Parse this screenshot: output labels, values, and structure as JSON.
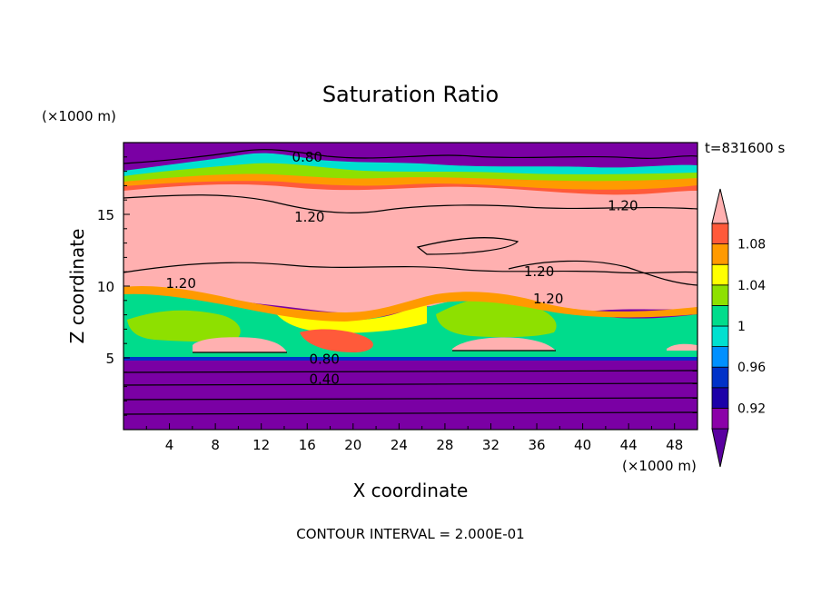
{
  "chart_data": {
    "type": "heatmap",
    "title": "Saturation Ratio",
    "xlabel": "X coordinate",
    "ylabel": "Z coordinate",
    "x_unit": "(×1000 m)",
    "y_unit": "(×1000 m)",
    "time_label": "t=831600 s",
    "footer": "CONTOUR INTERVAL = 2.000E-01",
    "xlim": [
      0,
      50
    ],
    "ylim": [
      0,
      20
    ],
    "x_ticks": [
      4,
      8,
      12,
      16,
      20,
      24,
      28,
      32,
      36,
      40,
      44,
      48
    ],
    "y_ticks": [
      5,
      10,
      15
    ],
    "colorbar": {
      "levels": [
        0.9,
        0.92,
        0.94,
        0.96,
        0.98,
        1.0,
        1.02,
        1.04,
        1.06,
        1.08,
        1.1
      ],
      "labeled_levels": [
        0.92,
        0.96,
        1.0,
        1.04,
        1.08
      ],
      "tick_labels": [
        "0.92",
        "0.96",
        "1",
        "1.04",
        "1.08"
      ],
      "colors": [
        "#5a00a0",
        "#8b00a8",
        "#1c00a8",
        "#0032c8",
        "#0090ff",
        "#00e0d0",
        "#00dc8c",
        "#8ee000",
        "#ffff00",
        "#ff9a00",
        "#ff5a3a",
        "#ffb0b0"
      ],
      "extend": "both"
    },
    "contour_labels": [
      "0.80",
      "1.20",
      "1.20",
      "1.20",
      "1.20",
      "1.20",
      "0.80",
      "0.40"
    ],
    "contour_label_positions": [
      {
        "x": 16,
        "y": 19.0
      },
      {
        "x": 16.2,
        "y": 14.8
      },
      {
        "x": 43.5,
        "y": 15.6
      },
      {
        "x": 36.2,
        "y": 11.0
      },
      {
        "x": 37.0,
        "y": 9.1
      },
      {
        "x": 5.0,
        "y": 10.2
      },
      {
        "x": 17.5,
        "y": 4.9
      },
      {
        "x": 17.5,
        "y": 3.5
      }
    ],
    "regions": {
      "upper_dry_band_z": [
        18.5,
        20
      ],
      "upper_moist_band_z": [
        16,
        18.5
      ],
      "supersaturated_layer_z": [
        10,
        16
      ],
      "mixed_cloud_layer_z": [
        5,
        10
      ],
      "dry_lower_layer_z": [
        0,
        5
      ]
    }
  }
}
